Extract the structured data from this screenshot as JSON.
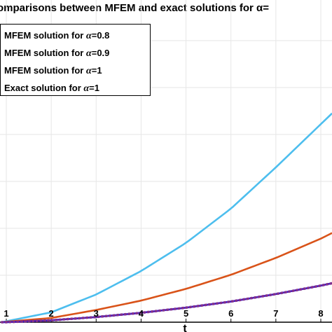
{
  "chart_data": {
    "type": "line",
    "title": "omparisons between MFEM and exact solutions for α=",
    "xlabel": "t",
    "ylabel": "",
    "xlim": [
      0.9,
      8.25
    ],
    "ylim": [
      0,
      6.2
    ],
    "grid": true,
    "legend_position": "top-left",
    "x_ticks": [
      1,
      2,
      3,
      4,
      5,
      6,
      7,
      8
    ],
    "x_tick_labels": [
      "1",
      "2",
      "3",
      "4",
      "5",
      "6",
      "7",
      "8"
    ],
    "y_gridlines": [
      0,
      1,
      2,
      3,
      4,
      5,
      6
    ],
    "series": [
      {
        "name_prefix": "MFEM solution for ",
        "name_symbol": "α",
        "name_suffix": "=0.8",
        "color": "#4DBEEE",
        "style": "solid",
        "x": [
          0.9,
          1,
          2,
          3,
          4,
          5,
          6,
          7,
          8,
          8.25
        ],
        "y": [
          0.0,
          0.02,
          0.21,
          0.59,
          1.09,
          1.69,
          2.42,
          3.3,
          4.22,
          4.45
        ]
      },
      {
        "name_prefix": "MFEM solution for ",
        "name_symbol": "α",
        "name_suffix": "=0.9",
        "color": "#D95319",
        "style": "solid",
        "x": [
          0.9,
          1,
          2,
          3,
          4,
          5,
          6,
          7,
          8,
          8.25
        ],
        "y": [
          0.0,
          0.01,
          0.09,
          0.26,
          0.46,
          0.71,
          1.01,
          1.37,
          1.78,
          1.9
        ]
      },
      {
        "name_prefix": "MFEM solution for ",
        "name_symbol": "α",
        "name_suffix": "=1",
        "color": "#0000FF",
        "style": "solid",
        "x": [
          0.9,
          1,
          2,
          3,
          4,
          5,
          6,
          7,
          8,
          8.25
        ],
        "y": [
          0.0,
          0.0,
          0.04,
          0.11,
          0.2,
          0.31,
          0.44,
          0.6,
          0.78,
          0.83
        ]
      },
      {
        "name_prefix": "Exact solution for ",
        "name_symbol": "α",
        "name_suffix": "=1",
        "color": "#7E2F8E",
        "style": "dotted",
        "x": [
          0.9,
          1,
          2,
          3,
          4,
          5,
          6,
          7,
          8,
          8.25
        ],
        "y": [
          0.0,
          0.0,
          0.04,
          0.11,
          0.2,
          0.31,
          0.44,
          0.6,
          0.78,
          0.83
        ]
      }
    ]
  }
}
